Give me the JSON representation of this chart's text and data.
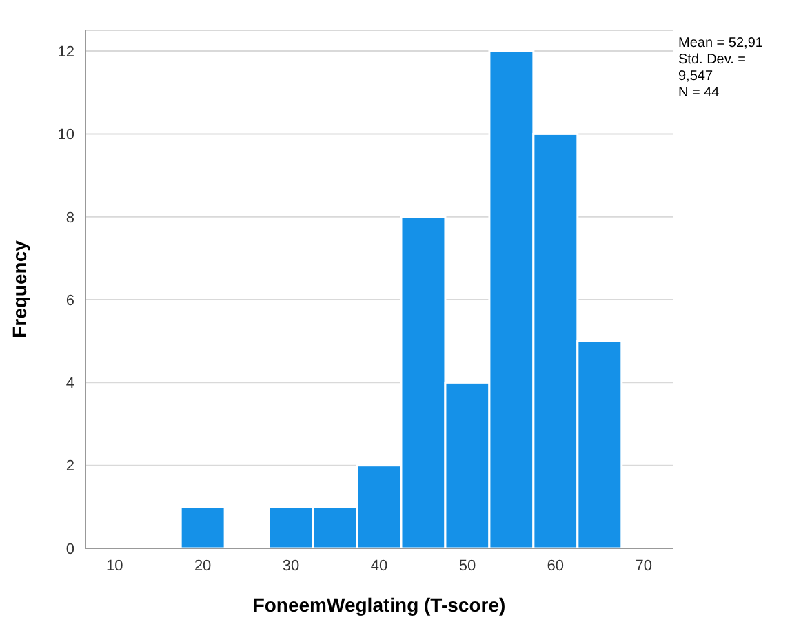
{
  "chart_data": {
    "type": "histogram",
    "xlabel": "FoneemWeglating (T-score)",
    "ylabel": "Frequency",
    "bins": [
      17.5,
      22.5,
      27.5,
      32.5,
      37.5,
      42.5,
      47.5,
      52.5,
      57.5,
      62.5,
      67.5
    ],
    "values": [
      1,
      0,
      1,
      1,
      2,
      8,
      4,
      12,
      10,
      5
    ],
    "color": "#1591e8",
    "xlim": [
      6.7,
      73.3
    ],
    "xticks": [
      10,
      20,
      30,
      40,
      50,
      60,
      70
    ],
    "ylim": [
      0,
      12.5
    ],
    "yticks": [
      0,
      2,
      4,
      6,
      8,
      10,
      12
    ],
    "grid": "y",
    "annotations": [
      "Mean = 52,91",
      "Std. Dev. = 9,547",
      "N = 44"
    ]
  }
}
